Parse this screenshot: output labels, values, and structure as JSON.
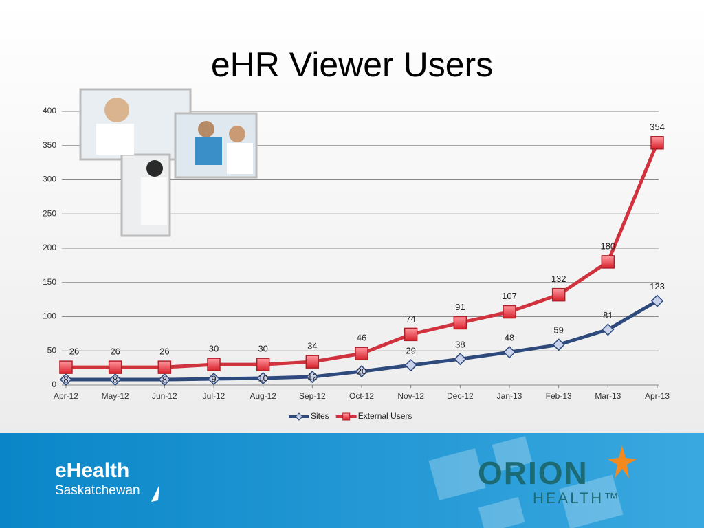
{
  "chart_data": {
    "type": "line",
    "title": "eHR Viewer Users",
    "categories": [
      "Apr-12",
      "May-12",
      "Jun-12",
      "Jul-12",
      "Aug-12",
      "Sep-12",
      "Oct-12",
      "Nov-12",
      "Dec-12",
      "Jan-13",
      "Feb-13",
      "Mar-13",
      "Apr-13"
    ],
    "series": [
      {
        "name": "Sites",
        "color": "#2e4a7d",
        "values": [
          8,
          8,
          8,
          9,
          10,
          12,
          20,
          29,
          38,
          48,
          59,
          81,
          123
        ]
      },
      {
        "name": "External Users",
        "color": "#d0323e",
        "values": [
          26,
          26,
          26,
          30,
          30,
          34,
          46,
          74,
          91,
          107,
          132,
          180,
          354
        ]
      }
    ],
    "ylim": [
      0,
      400
    ],
    "yticks": [
      0,
      50,
      100,
      150,
      200,
      250,
      300,
      350,
      400
    ],
    "grid": true,
    "legend": "bottom"
  },
  "logos": {
    "left": [
      "eHealth",
      "Saskatchewan"
    ],
    "right": [
      "ORION",
      "HEALTH™"
    ]
  }
}
